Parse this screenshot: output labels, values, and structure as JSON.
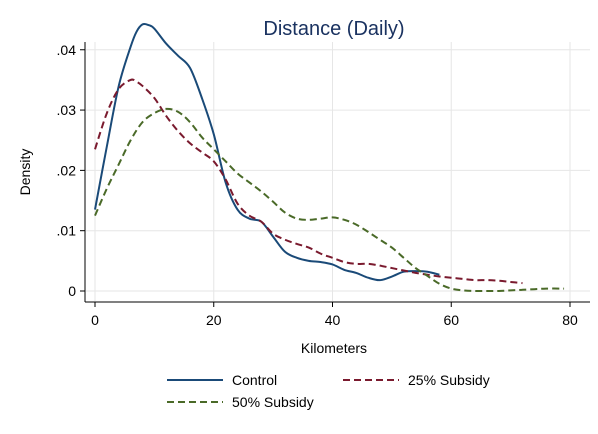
{
  "chart_data": {
    "type": "line",
    "title": "Distance (Daily)",
    "xlabel": "Kilometers",
    "ylabel": "Density",
    "xlim": [
      0,
      80
    ],
    "ylim": [
      0,
      0.045
    ],
    "x_ticks": [
      0,
      20,
      40,
      60,
      80
    ],
    "x_tick_labels": [
      "0",
      "20",
      "40",
      "60",
      "80"
    ],
    "y_ticks": [
      0,
      0.01,
      0.02,
      0.03,
      0.04
    ],
    "y_tick_labels": [
      "0",
      ".01",
      ".02",
      ".03",
      ".04"
    ],
    "grid": true,
    "legend_position": "bottom",
    "series": [
      {
        "name": "Control",
        "color": "#1a4a78",
        "dash": "solid",
        "x": [
          0,
          2,
          4,
          6,
          7,
          8,
          9,
          10,
          12,
          14,
          16,
          18,
          20,
          22,
          24,
          26,
          28,
          30,
          32,
          34,
          36,
          38,
          40,
          42,
          44,
          46,
          48,
          50,
          52,
          54,
          56,
          58
        ],
        "y": [
          0.0135,
          0.024,
          0.034,
          0.0405,
          0.043,
          0.0442,
          0.0441,
          0.0435,
          0.041,
          0.039,
          0.037,
          0.032,
          0.026,
          0.018,
          0.0135,
          0.012,
          0.0115,
          0.009,
          0.0065,
          0.0055,
          0.005,
          0.0048,
          0.0044,
          0.0035,
          0.003,
          0.0022,
          0.0018,
          0.0024,
          0.0032,
          0.0033,
          0.0032,
          0.0027
        ]
      },
      {
        "name": "25% Subsidy",
        "color": "#7a1a2e",
        "dash": "dashed",
        "x": [
          0,
          2,
          4,
          6,
          7,
          8,
          10,
          12,
          14,
          16,
          18,
          20,
          22,
          24,
          26,
          28,
          30,
          32,
          34,
          36,
          38,
          40,
          42,
          44,
          46,
          48,
          50,
          52,
          54,
          56,
          58,
          60,
          62,
          64,
          66,
          68,
          70,
          72
        ],
        "y": [
          0.0235,
          0.0295,
          0.0335,
          0.035,
          0.0347,
          0.034,
          0.032,
          0.029,
          0.0265,
          0.0245,
          0.023,
          0.0215,
          0.0185,
          0.0145,
          0.0125,
          0.0115,
          0.0095,
          0.0085,
          0.0078,
          0.0072,
          0.0062,
          0.0055,
          0.0048,
          0.0045,
          0.0045,
          0.0042,
          0.0038,
          0.0034,
          0.003,
          0.0027,
          0.0024,
          0.0022,
          0.002,
          0.0018,
          0.0018,
          0.0017,
          0.0015,
          0.0013
        ]
      },
      {
        "name": "50% Subsidy",
        "color": "#4a6a28",
        "dash": "dashed",
        "x": [
          0,
          2,
          4,
          6,
          8,
          10,
          12,
          14,
          16,
          18,
          20,
          22,
          24,
          26,
          28,
          30,
          32,
          34,
          36,
          38,
          40,
          42,
          44,
          46,
          48,
          50,
          52,
          54,
          56,
          58,
          60,
          62,
          64,
          66,
          68,
          70,
          72,
          74,
          76,
          79
        ],
        "y": [
          0.0125,
          0.017,
          0.021,
          0.025,
          0.028,
          0.0295,
          0.0302,
          0.0297,
          0.028,
          0.0255,
          0.0235,
          0.0215,
          0.0195,
          0.018,
          0.0165,
          0.0148,
          0.013,
          0.012,
          0.0118,
          0.012,
          0.0122,
          0.0118,
          0.011,
          0.0098,
          0.0085,
          0.0072,
          0.0055,
          0.0038,
          0.0025,
          0.0012,
          0.0004,
          0.0001,
          0.0,
          0.0,
          0.0,
          0.0001,
          0.0002,
          0.0003,
          0.0004,
          0.0004
        ]
      }
    ]
  }
}
